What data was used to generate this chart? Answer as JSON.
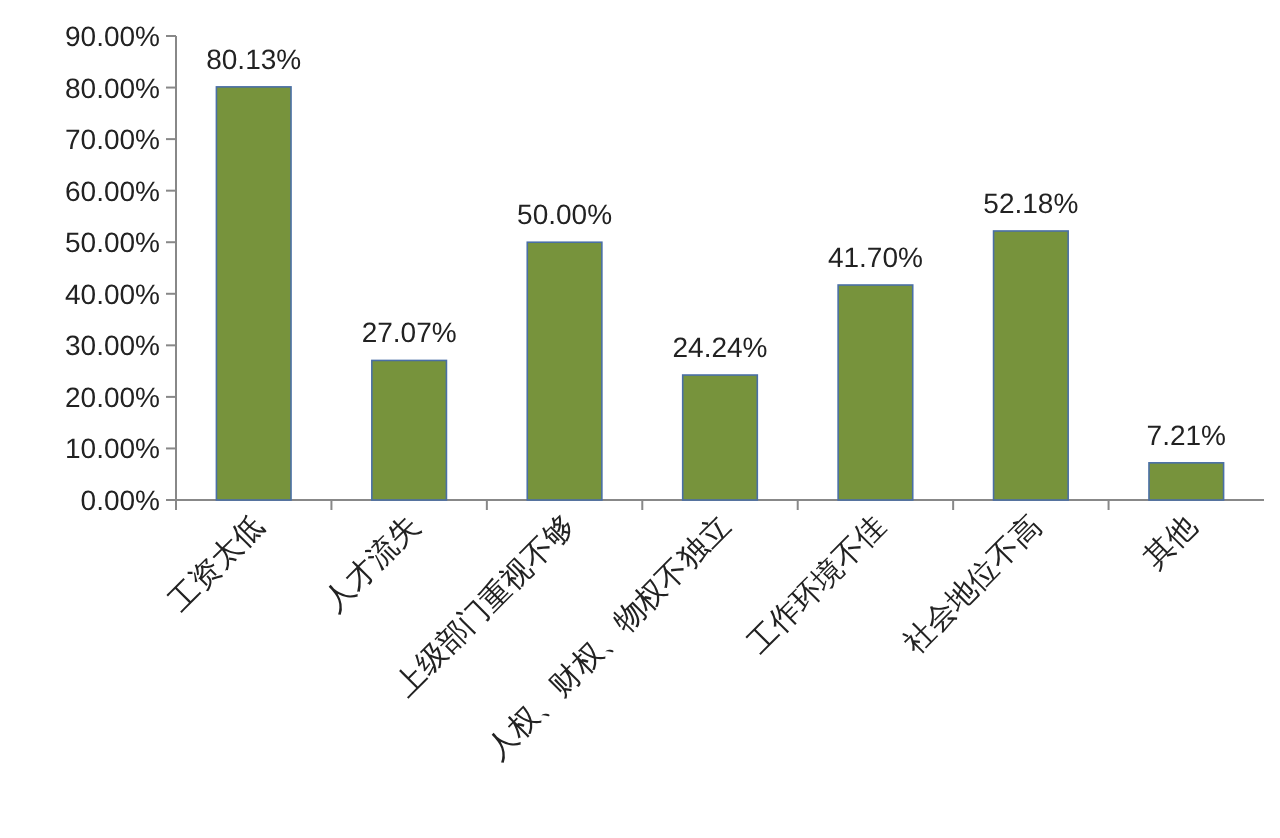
{
  "chart_data": {
    "type": "bar",
    "categories": [
      "工资太低",
      "人才流失",
      "上级部门重视不够",
      "人权、财权、物权不独立",
      "工作环境不佳",
      "社会地位不高",
      "其他"
    ],
    "values": [
      80.13,
      27.07,
      50.0,
      24.24,
      41.7,
      52.18,
      7.21
    ],
    "value_labels": [
      "80.13%",
      "27.07%",
      "50.00%",
      "24.24%",
      "41.70%",
      "52.18%",
      "7.21%"
    ],
    "color": "#77933c",
    "ylim": [
      0,
      90
    ],
    "yticks": [
      {
        "value": 0,
        "label": "0.00%"
      },
      {
        "value": 10,
        "label": "10.00%"
      },
      {
        "value": 20,
        "label": "20.00%"
      },
      {
        "value": 30,
        "label": "30.00%"
      },
      {
        "value": 40,
        "label": "40.00%"
      },
      {
        "value": 50,
        "label": "50.00%"
      },
      {
        "value": 60,
        "label": "60.00%"
      },
      {
        "value": 70,
        "label": "70.00%"
      },
      {
        "value": 80,
        "label": "80.00%"
      },
      {
        "value": 90,
        "label": "90.00%"
      }
    ],
    "grid": false
  }
}
